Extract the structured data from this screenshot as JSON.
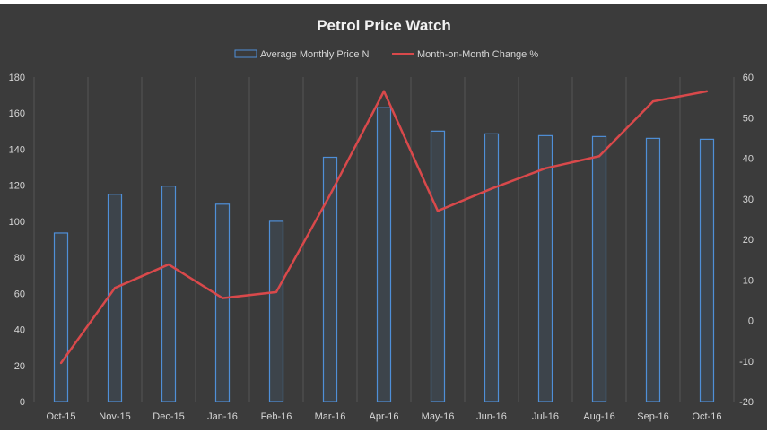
{
  "chart_data": {
    "type": "bar+line",
    "title": "Petrol Price Watch",
    "categories": [
      "Oct-15",
      "Nov-15",
      "Dec-15",
      "Jan-16",
      "Feb-16",
      "Mar-16",
      "Apr-16",
      "May-16",
      "Jun-16",
      "Jul-16",
      "Aug-16",
      "Sep-16",
      "Oct-16"
    ],
    "series": [
      {
        "name": "Average Monthly Price N",
        "type": "bar",
        "axis": "left",
        "color": "#4f8fd8",
        "values": [
          93.5,
          115,
          119.5,
          109.5,
          100,
          135.5,
          163,
          150,
          148.5,
          147.5,
          147,
          146,
          145.5
        ]
      },
      {
        "name": "Month-on-Month Change %",
        "type": "line",
        "axis": "right",
        "color": "#d9494b",
        "values": [
          -10.5,
          8,
          13.8,
          5.5,
          7,
          31,
          56.5,
          27,
          32.5,
          37.5,
          40.5,
          54,
          56.5
        ]
      }
    ],
    "y_left": {
      "min": 0,
      "max": 180,
      "step": 20,
      "ticks": [
        "0",
        "20",
        "40",
        "60",
        "80",
        "100",
        "120",
        "140",
        "160",
        "180"
      ]
    },
    "y_right": {
      "min": -20,
      "max": 60,
      "step": 10,
      "ticks": [
        "-20",
        "-10",
        "0",
        "10",
        "20",
        "30",
        "40",
        "50",
        "60"
      ]
    },
    "grid": "vertical",
    "legend_position": "top"
  },
  "colors": {
    "background": "#3b3b3b",
    "grid": "#555555",
    "bar": "#4f8fd8",
    "line": "#d9494b",
    "text": "#d6d6d6"
  }
}
